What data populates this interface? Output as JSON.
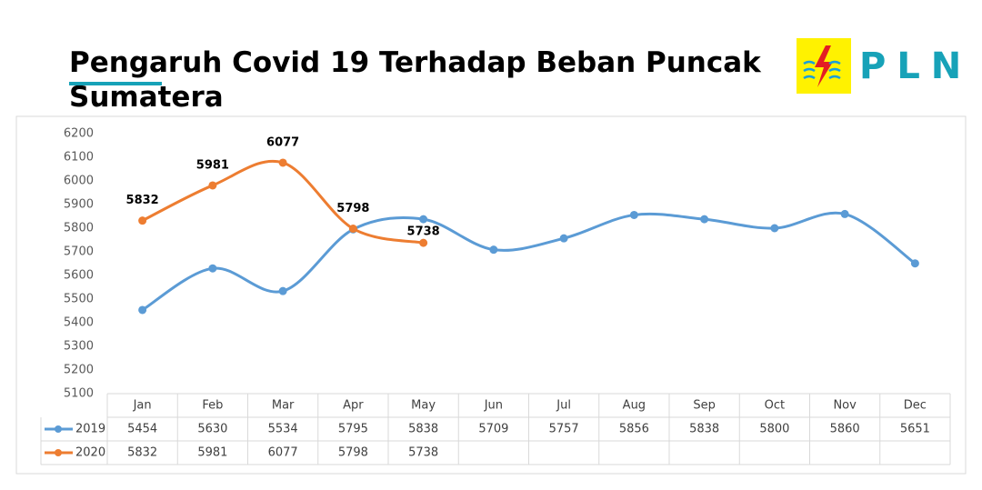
{
  "chart_data": {
    "type": "line",
    "title": "Pengaruh Covid 19 Terhadap Beban Puncak Sumatera",
    "logo": "PLN",
    "categories": [
      "Jan",
      "Feb",
      "Mar",
      "Apr",
      "May",
      "Jun",
      "Jul",
      "Aug",
      "Sep",
      "Oct",
      "Nov",
      "Dec"
    ],
    "series": [
      {
        "name": "2019",
        "color": "#5b9bd5",
        "values": [
          5454,
          5630,
          5534,
          5795,
          5838,
          5709,
          5757,
          5856,
          5838,
          5800,
          5860,
          5651
        ]
      },
      {
        "name": "2020",
        "color": "#ed7d31",
        "values": [
          5832,
          5981,
          6077,
          5798,
          5738,
          null,
          null,
          null,
          null,
          null,
          null,
          null
        ],
        "data_labels": true
      }
    ],
    "ylim": [
      5100,
      6200
    ],
    "yticks": [
      5100,
      5200,
      5300,
      5400,
      5500,
      5600,
      5700,
      5800,
      5900,
      6000,
      6100,
      6200
    ],
    "grid": false,
    "data_table": true
  }
}
